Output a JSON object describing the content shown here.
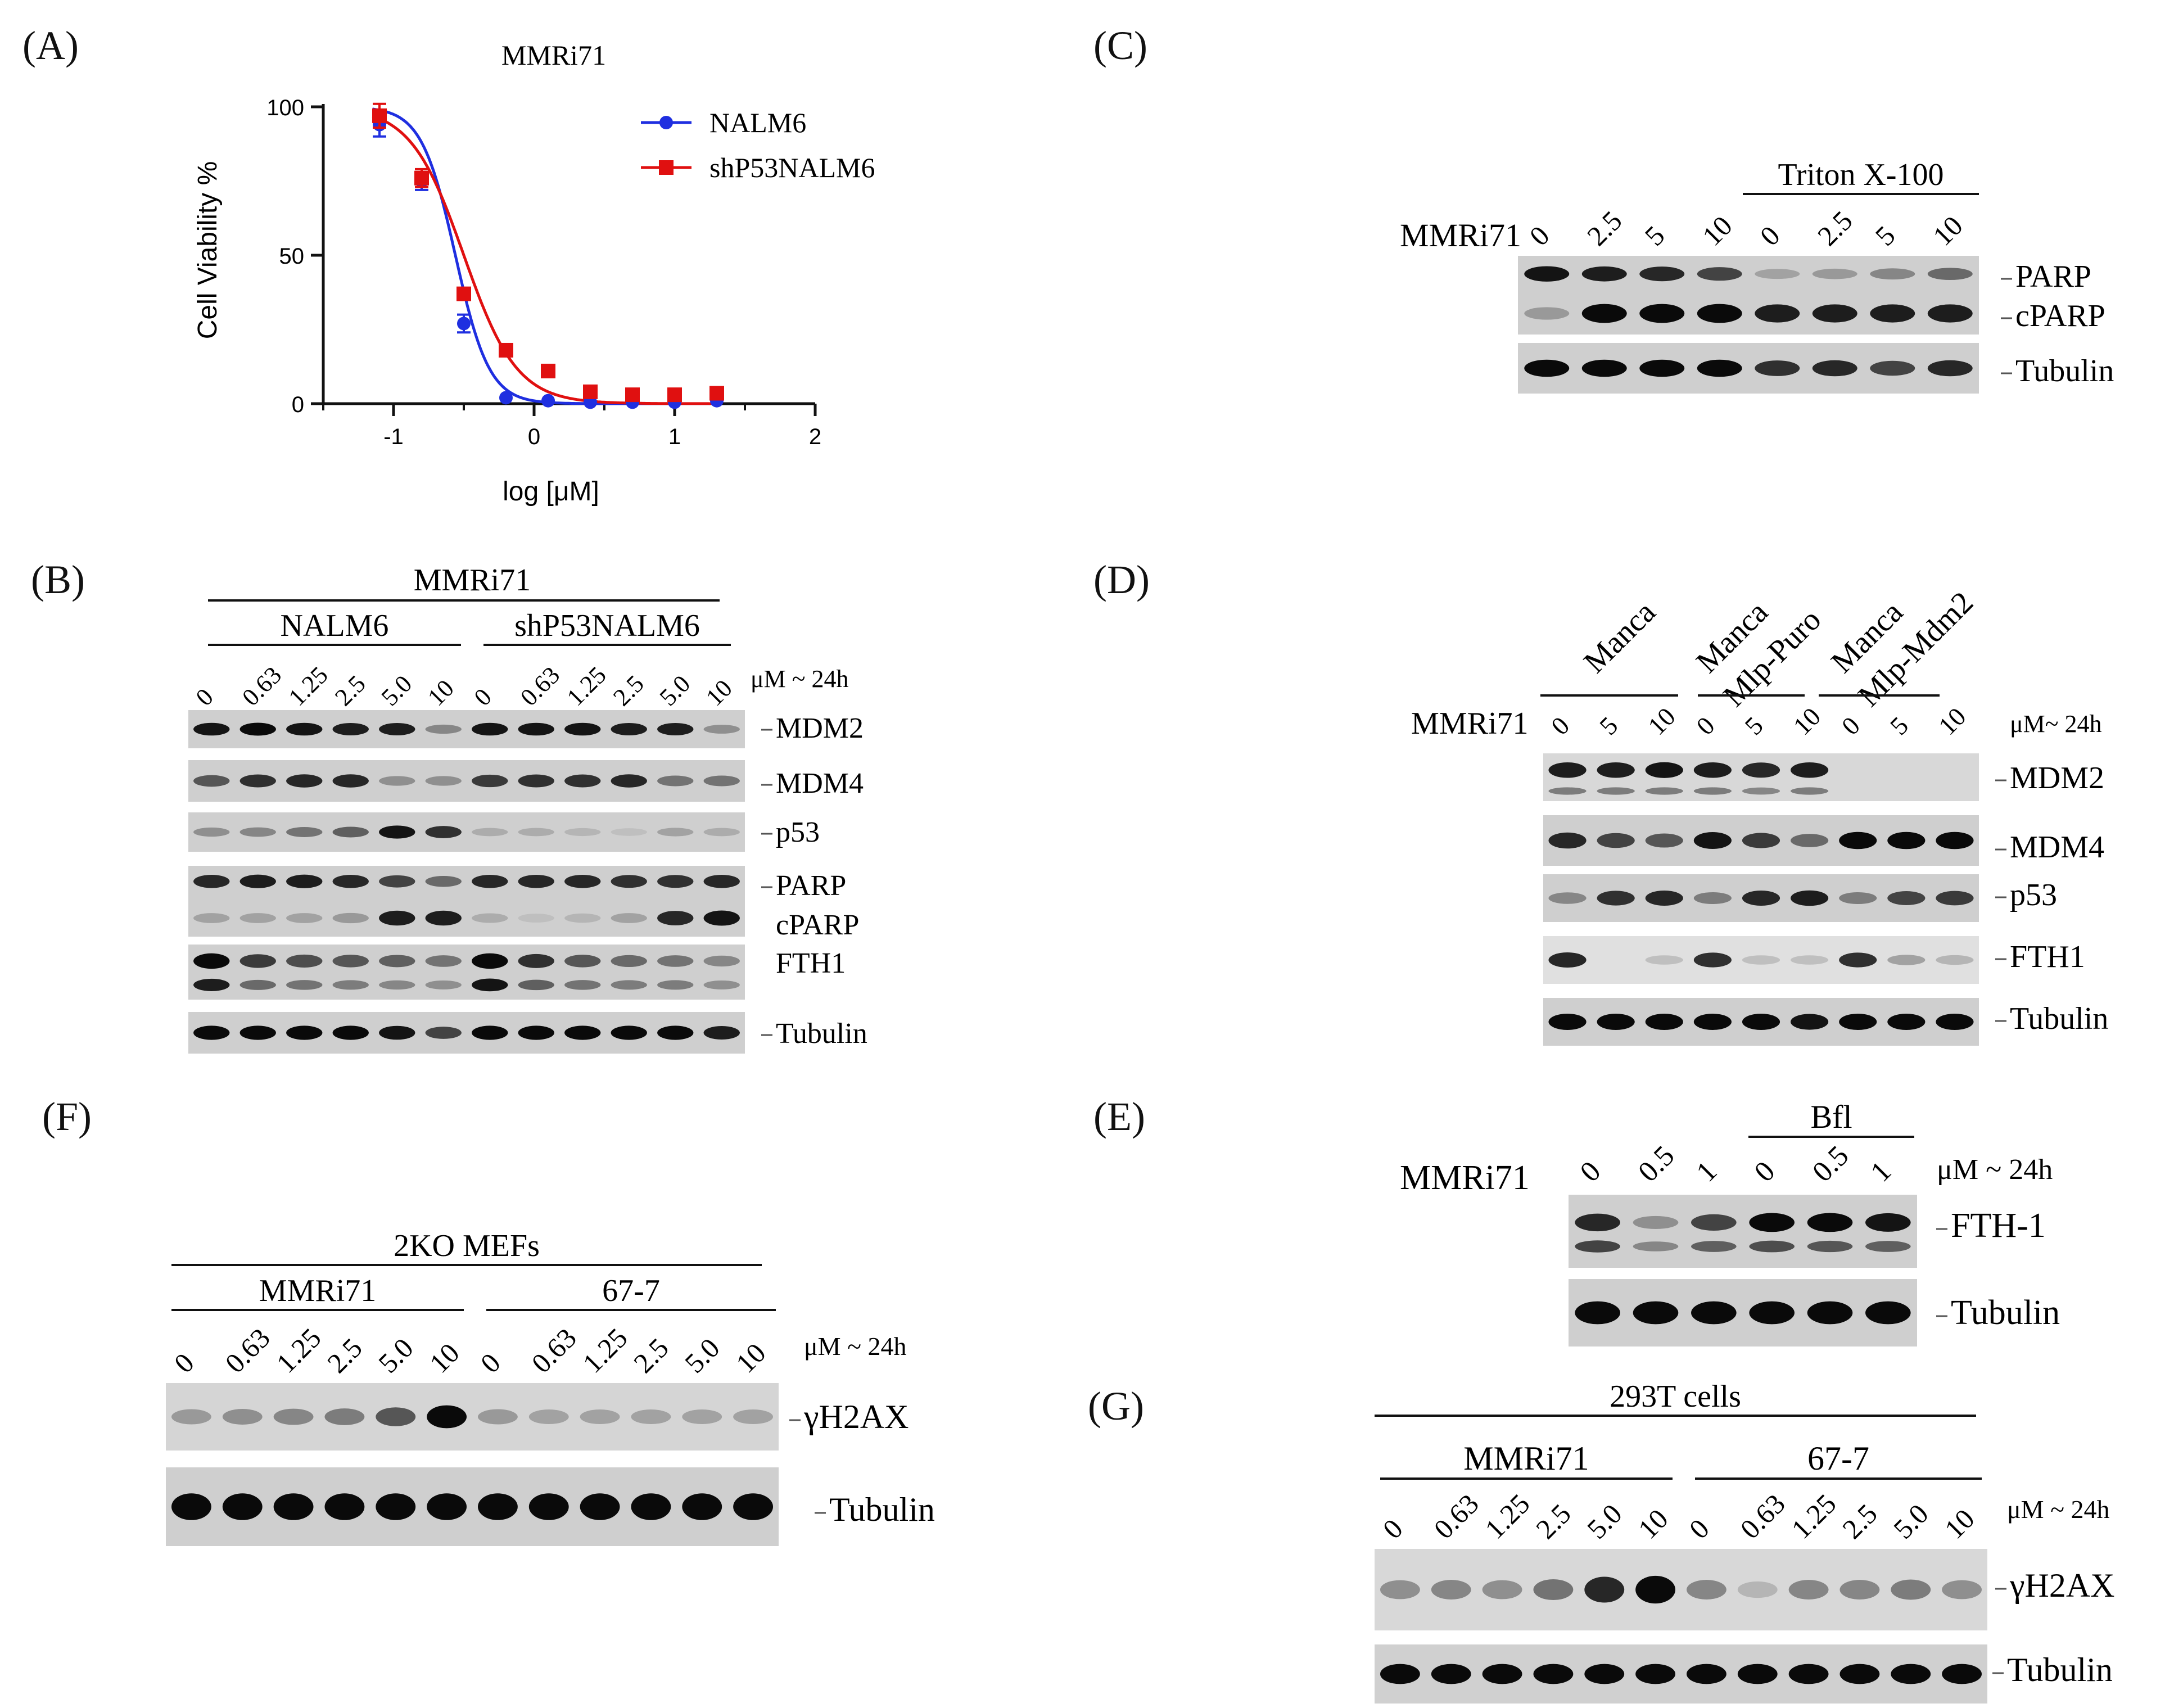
{
  "panels": {
    "A": "(A)",
    "B": "(B)",
    "C": "(C)",
    "D": "(D)",
    "E": "(E)",
    "F": "(F)",
    "G": "(G)"
  },
  "chart_data": {
    "type": "scatter",
    "title": "MMRi71",
    "xlabel": "log [μM]",
    "ylabel": "Cell Viability %",
    "xlim": [
      -1.5,
      2
    ],
    "ylim": [
      0,
      100
    ],
    "xticks": [
      "-1",
      "0",
      "1",
      "2"
    ],
    "yticks": [
      "0",
      "50",
      "100"
    ],
    "x_values": [
      -1.1,
      -0.8,
      -0.5,
      -0.2,
      0.1,
      0.4,
      0.7,
      1.0,
      1.3
    ],
    "legend_position": "top-right",
    "series": [
      {
        "name": "NALM6",
        "color": "#1f2fe0",
        "marker": "circle",
        "values": [
          94,
          75,
          27,
          2,
          1,
          0.5,
          0.5,
          0.5,
          1
        ],
        "errors": [
          4,
          3,
          3,
          0,
          0,
          0,
          0,
          0,
          0
        ],
        "fit_logIC50": -0.56,
        "fit_hill": 3.6
      },
      {
        "name": "shP53NALM6",
        "color": "#e01010",
        "marker": "square",
        "values": [
          97,
          76,
          37,
          18,
          11,
          4,
          3,
          3,
          3.5
        ],
        "errors": [
          4,
          3,
          0,
          2,
          0,
          0,
          0,
          0,
          0
        ],
        "fit_logIC50": -0.5,
        "fit_hill": 2.3
      }
    ]
  },
  "blots": {
    "B": {
      "treatment": "MMRi71",
      "groups": [
        "NALM6",
        "shP53NALM6"
      ],
      "lanes": [
        "0",
        "0.63",
        "1.25",
        "2.5",
        "5.0",
        "10",
        "0",
        "0.63",
        "1.25",
        "2.5",
        "5.0",
        "10"
      ],
      "conc_unit": "μM ~ 24h",
      "rows": [
        "MDM2",
        "MDM4",
        "p53",
        "PARP",
        "cPARP",
        "FTH1",
        "Tubulin"
      ]
    },
    "C": {
      "treatment": "MMRi71",
      "group": "Triton X-100",
      "lanes": [
        "0",
        "2.5",
        "5",
        "10",
        "0",
        "2.5",
        "5",
        "10"
      ],
      "rows": [
        "PARP",
        "cPARP",
        "Tubulin"
      ]
    },
    "D": {
      "treatment": "MMRi71",
      "groups": [
        "Manca",
        "Manca\nMlp-Puro",
        "Manca\nMlp-Mdm2"
      ],
      "lanes": [
        "0",
        "5",
        "10",
        "0",
        "5",
        "10",
        "0",
        "5",
        "10"
      ],
      "conc_unit": "μM~ 24h",
      "rows": [
        "MDM2",
        "MDM4",
        "p53",
        "FTH1",
        "Tubulin"
      ]
    },
    "E": {
      "treatment": "MMRi71",
      "group": "Bfl",
      "lanes": [
        "0",
        "0.5",
        "1",
        "0",
        "0.5",
        "1"
      ],
      "conc_unit": "μM ~ 24h",
      "rows": [
        "FTH-1",
        "Tubulin"
      ]
    },
    "F": {
      "title": "2KO MEFs",
      "groups": [
        "MMRi71",
        "67-7"
      ],
      "lanes": [
        "0",
        "0.63",
        "1.25",
        "2.5",
        "5.0",
        "10",
        "0",
        "0.63",
        "1.25",
        "2.5",
        "5.0",
        "10"
      ],
      "conc_unit": "μM ~ 24h",
      "rows": [
        "γH2AX",
        "Tubulin"
      ]
    },
    "G": {
      "title": "293T cells",
      "groups": [
        "MMRi71",
        "67-7"
      ],
      "lanes": [
        "0",
        "0.63",
        "1.25",
        "2.5",
        "5.0",
        "10",
        "0",
        "0.63",
        "1.25",
        "2.5",
        "5.0",
        "10"
      ],
      "conc_unit": "μM ~ 24h",
      "rows": [
        "γH2AX",
        "Tubulin"
      ]
    }
  }
}
